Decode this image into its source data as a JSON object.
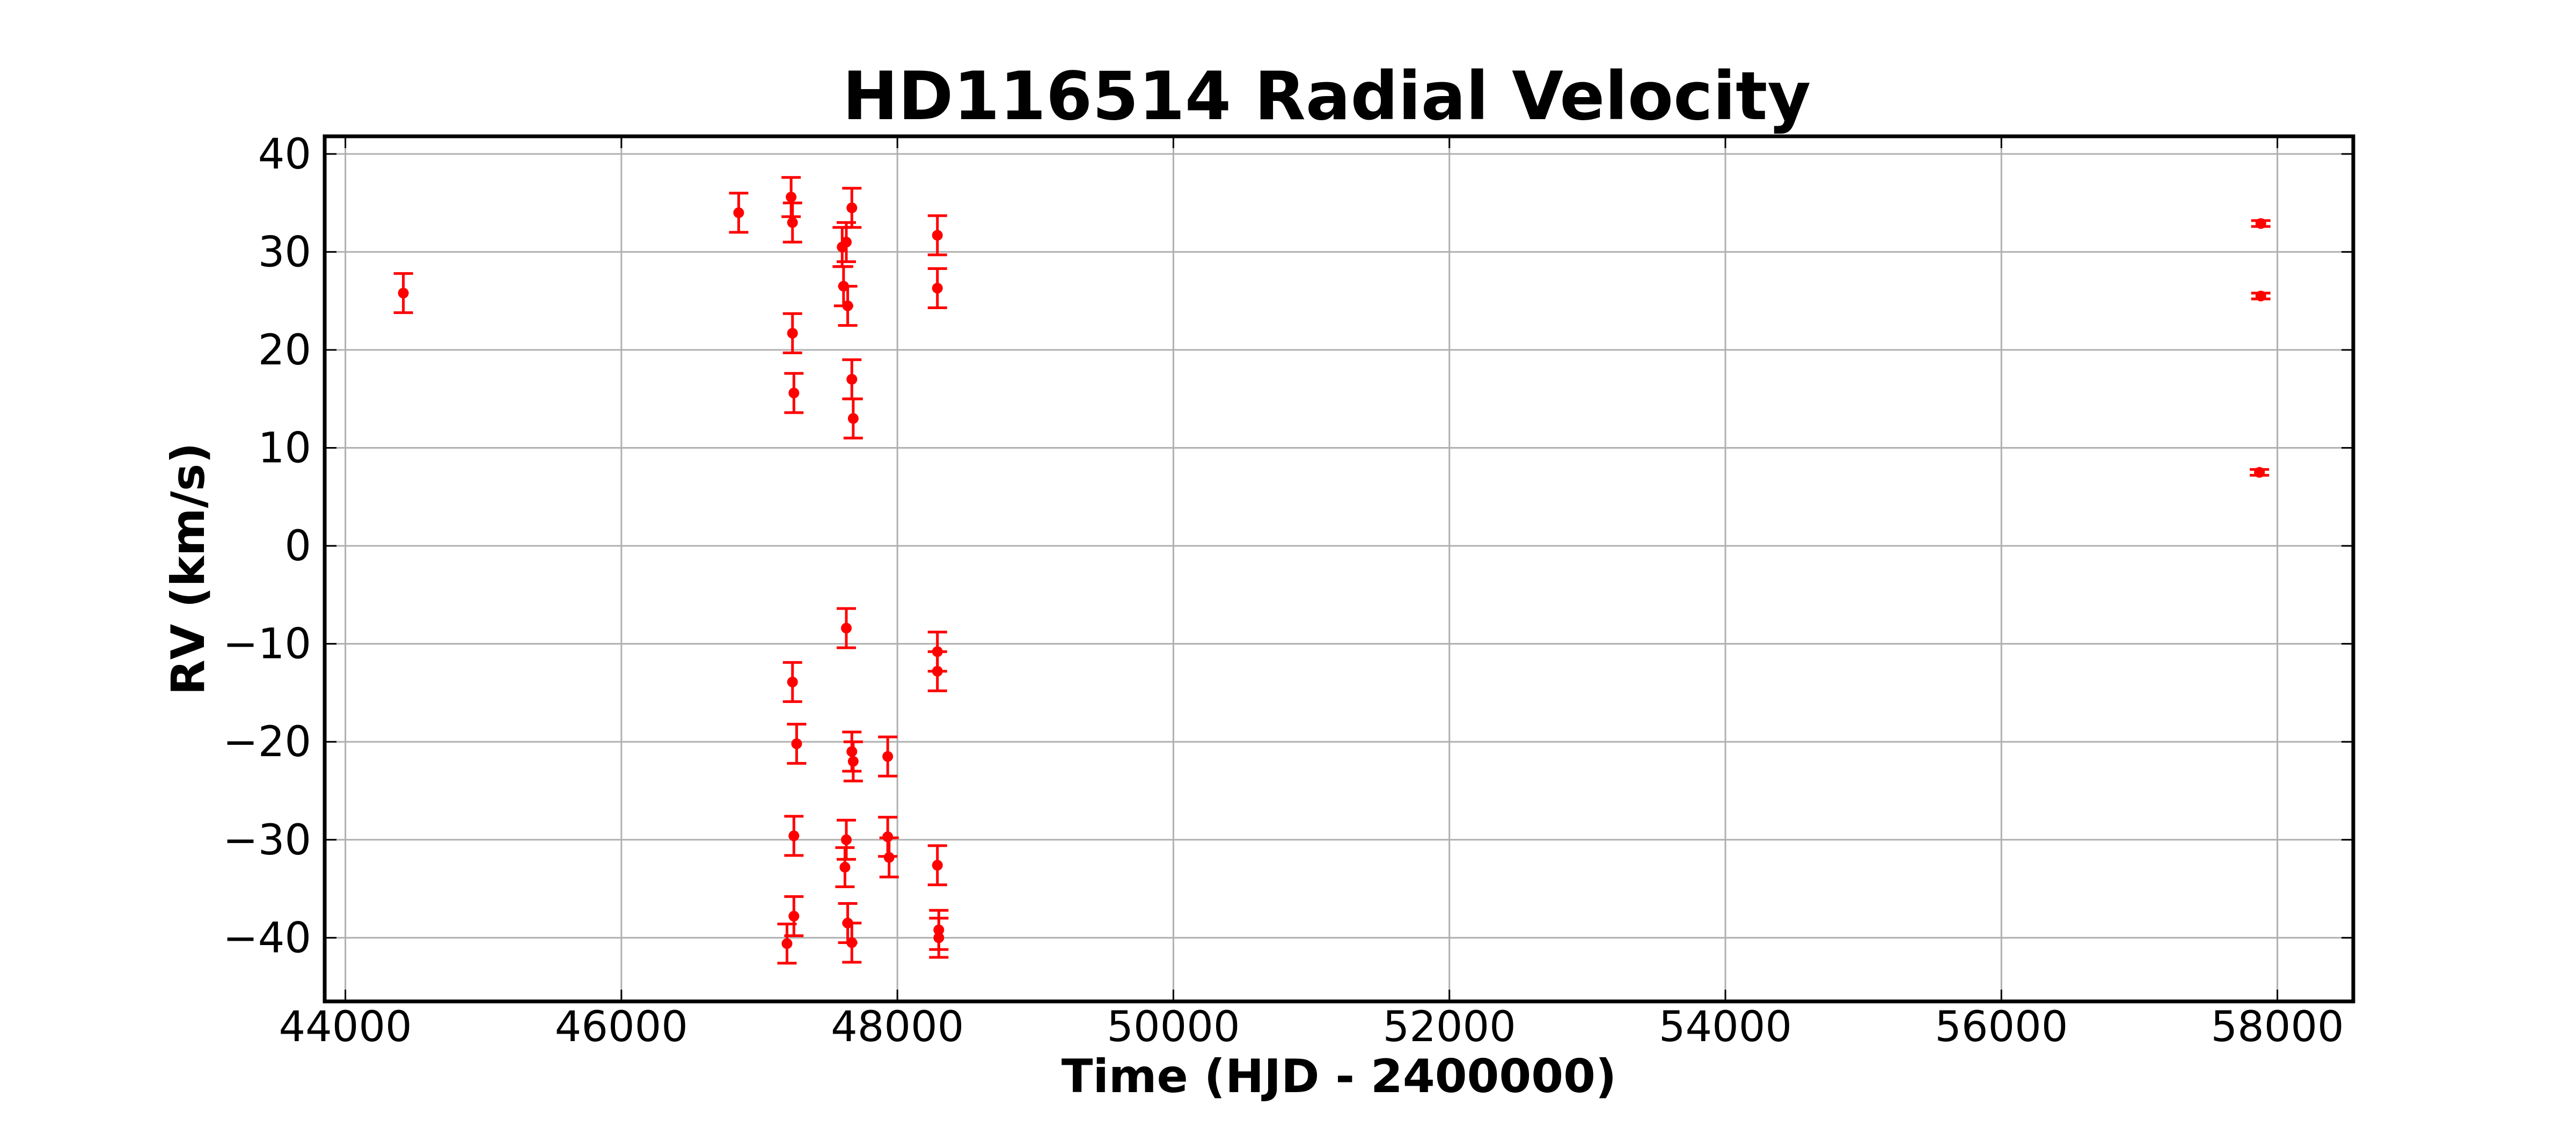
{
  "chart_data": {
    "type": "scatter",
    "title": "HD116514 Radial Velocity",
    "xlabel": "Time (HJD - 2400000)",
    "ylabel": "RV (km/s)",
    "xlim": [
      43850,
      58550
    ],
    "ylim": [
      -46.5,
      41.8
    ],
    "xticks": [
      44000,
      46000,
      48000,
      50000,
      52000,
      54000,
      56000,
      58000
    ],
    "xtick_labels": [
      "44000",
      "46000",
      "48000",
      "50000",
      "52000",
      "54000",
      "56000",
      "58000"
    ],
    "yticks": [
      40,
      30,
      20,
      10,
      0,
      -10,
      -20,
      -30,
      -40
    ],
    "ytick_labels": [
      "40",
      "30",
      "20",
      "10",
      "0",
      "−10",
      "−20",
      "−30",
      "−40"
    ],
    "grid": true,
    "marker_color": "#ff0000",
    "series": [
      {
        "points": [
          {
            "x": 44420,
            "y": 25.8,
            "err": 2.0
          },
          {
            "x": 46850,
            "y": 34.0,
            "err": 2.0
          },
          {
            "x": 47200,
            "y": -40.6,
            "err": 2.0
          },
          {
            "x": 47230,
            "y": 35.6,
            "err": 2.0
          },
          {
            "x": 47240,
            "y": 33.0,
            "err": 2.0
          },
          {
            "x": 47240,
            "y": 21.7,
            "err": 2.0
          },
          {
            "x": 47250,
            "y": 15.6,
            "err": 2.0
          },
          {
            "x": 47240,
            "y": -13.9,
            "err": 2.0
          },
          {
            "x": 47270,
            "y": -20.2,
            "err": 2.0
          },
          {
            "x": 47250,
            "y": -29.6,
            "err": 2.0
          },
          {
            "x": 47250,
            "y": -37.8,
            "err": 2.0
          },
          {
            "x": 47600,
            "y": 30.5,
            "err": 2.0
          },
          {
            "x": 47610,
            "y": 26.5,
            "err": 2.0
          },
          {
            "x": 47630,
            "y": 31.0,
            "err": 2.0
          },
          {
            "x": 47640,
            "y": 24.5,
            "err": 2.0
          },
          {
            "x": 47670,
            "y": 34.5,
            "err": 2.0
          },
          {
            "x": 47670,
            "y": 17.0,
            "err": 2.0
          },
          {
            "x": 47680,
            "y": 13.0,
            "err": 2.0
          },
          {
            "x": 47630,
            "y": -8.4,
            "err": 2.0
          },
          {
            "x": 47670,
            "y": -21.0,
            "err": 2.0
          },
          {
            "x": 47680,
            "y": -22.0,
            "err": 2.0
          },
          {
            "x": 47630,
            "y": -30.0,
            "err": 2.0
          },
          {
            "x": 47620,
            "y": -32.8,
            "err": 2.0
          },
          {
            "x": 47640,
            "y": -38.5,
            "err": 2.0
          },
          {
            "x": 47670,
            "y": -40.5,
            "err": 2.0
          },
          {
            "x": 47930,
            "y": -21.5,
            "err": 2.0
          },
          {
            "x": 47930,
            "y": -29.7,
            "err": 2.0
          },
          {
            "x": 47940,
            "y": -31.8,
            "err": 2.0
          },
          {
            "x": 48290,
            "y": 31.7,
            "err": 2.0
          },
          {
            "x": 48290,
            "y": 26.3,
            "err": 2.0
          },
          {
            "x": 48290,
            "y": -10.8,
            "err": 2.0
          },
          {
            "x": 48290,
            "y": -12.8,
            "err": 2.0
          },
          {
            "x": 48290,
            "y": -32.6,
            "err": 2.0
          },
          {
            "x": 48300,
            "y": -39.2,
            "err": 2.0
          },
          {
            "x": 48300,
            "y": -40.0,
            "err": 2.0
          },
          {
            "x": 57880,
            "y": 32.9,
            "err": 0.3
          },
          {
            "x": 57880,
            "y": 25.5,
            "err": 0.3
          },
          {
            "x": 57870,
            "y": 7.5,
            "err": 0.3
          }
        ]
      }
    ]
  }
}
